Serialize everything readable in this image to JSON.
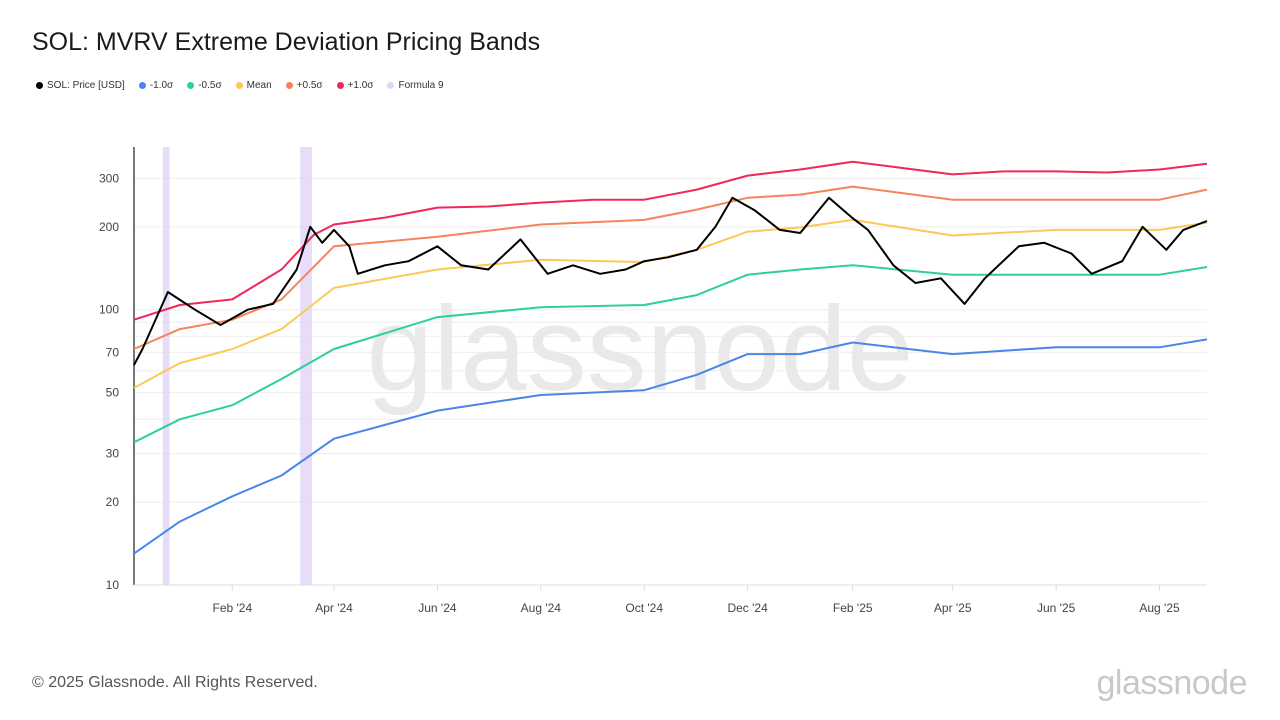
{
  "title": "SOL: MVRV Extreme Deviation Pricing Bands",
  "footer": "© 2025 Glassnode. All Rights Reserved.",
  "brand": "glassnode",
  "watermark": "glassnode",
  "chart_data": {
    "type": "line",
    "title": "SOL: MVRV Extreme Deviation Pricing Bands",
    "yscale": "log",
    "ylim": [
      10,
      390
    ],
    "xlim": [
      "2023-12-05",
      "2025-08-29"
    ],
    "yticks": [
      10,
      20,
      30,
      50,
      70,
      100,
      200,
      300
    ],
    "xticks": [
      {
        "date": "2024-02-01",
        "label": "Feb '24"
      },
      {
        "date": "2024-04-01",
        "label": "Apr '24"
      },
      {
        "date": "2024-06-01",
        "label": "Jun '24"
      },
      {
        "date": "2024-08-01",
        "label": "Aug '24"
      },
      {
        "date": "2024-10-01",
        "label": "Oct '24"
      },
      {
        "date": "2024-12-01",
        "label": "Dec '24"
      },
      {
        "date": "2025-02-01",
        "label": "Feb '25"
      },
      {
        "date": "2025-04-01",
        "label": "Apr '25"
      },
      {
        "date": "2025-06-01",
        "label": "Jun '25"
      },
      {
        "date": "2025-08-01",
        "label": "Aug '25"
      }
    ],
    "legend": [
      "SOL: Price [USD]",
      "-1.0σ",
      "-0.5σ",
      "Mean",
      "+0.5σ",
      "+1.0σ",
      "Formula 9"
    ],
    "legend_position": "top-left",
    "shaded": {
      "name": "Formula 9",
      "color": "#e2d4f7",
      "ranges": [
        [
          "2023-12-22",
          "2023-12-26"
        ],
        [
          "2024-03-12",
          "2024-03-19"
        ]
      ]
    },
    "series": [
      {
        "name": "+1.0σ",
        "color": "#f0285a",
        "points": [
          [
            "2023-12-05",
            92
          ],
          [
            "2024-01-01",
            104
          ],
          [
            "2024-02-01",
            109
          ],
          [
            "2024-03-01",
            140
          ],
          [
            "2024-03-20",
            187
          ],
          [
            "2024-04-01",
            204
          ],
          [
            "2024-05-01",
            216
          ],
          [
            "2024-06-01",
            235
          ],
          [
            "2024-07-01",
            237
          ],
          [
            "2024-08-01",
            245
          ],
          [
            "2024-09-01",
            251
          ],
          [
            "2024-10-01",
            251
          ],
          [
            "2024-11-01",
            273
          ],
          [
            "2024-12-01",
            307
          ],
          [
            "2025-01-01",
            323
          ],
          [
            "2025-02-01",
            345
          ],
          [
            "2025-03-01",
            328
          ],
          [
            "2025-04-01",
            310
          ],
          [
            "2025-05-01",
            318
          ],
          [
            "2025-06-01",
            318
          ],
          [
            "2025-07-01",
            315
          ],
          [
            "2025-08-01",
            323
          ],
          [
            "2025-08-29",
            339
          ]
        ]
      },
      {
        "name": "+0.5σ",
        "color": "#f5845a",
        "points": [
          [
            "2023-12-05",
            72
          ],
          [
            "2024-01-01",
            85
          ],
          [
            "2024-02-01",
            92
          ],
          [
            "2024-03-01",
            109
          ],
          [
            "2024-04-01",
            170
          ],
          [
            "2024-06-01",
            184
          ],
          [
            "2024-08-01",
            204
          ],
          [
            "2024-10-01",
            212
          ],
          [
            "2024-11-01",
            231
          ],
          [
            "2024-12-01",
            255
          ],
          [
            "2025-01-01",
            262
          ],
          [
            "2025-02-01",
            280
          ],
          [
            "2025-04-01",
            251
          ],
          [
            "2025-06-01",
            251
          ],
          [
            "2025-08-01",
            251
          ],
          [
            "2025-08-29",
            273
          ]
        ]
      },
      {
        "name": "Mean",
        "color": "#fbc85a",
        "points": [
          [
            "2023-12-05",
            52
          ],
          [
            "2024-01-01",
            64
          ],
          [
            "2024-02-01",
            72
          ],
          [
            "2024-03-01",
            85
          ],
          [
            "2024-04-01",
            120
          ],
          [
            "2024-06-01",
            140
          ],
          [
            "2024-08-01",
            152
          ],
          [
            "2024-10-01",
            149
          ],
          [
            "2024-11-01",
            165
          ],
          [
            "2024-12-01",
            192
          ],
          [
            "2025-01-01",
            199
          ],
          [
            "2025-02-01",
            212
          ],
          [
            "2025-04-01",
            186
          ],
          [
            "2025-06-01",
            195
          ],
          [
            "2025-08-01",
            195
          ],
          [
            "2025-08-29",
            207
          ]
        ]
      },
      {
        "name": "-0.5σ",
        "color": "#2ecf98",
        "points": [
          [
            "2023-12-05",
            33
          ],
          [
            "2024-01-01",
            40
          ],
          [
            "2024-02-01",
            45
          ],
          [
            "2024-03-01",
            56
          ],
          [
            "2024-04-01",
            72
          ],
          [
            "2024-06-01",
            94
          ],
          [
            "2024-08-01",
            102
          ],
          [
            "2024-10-01",
            104
          ],
          [
            "2024-11-01",
            113
          ],
          [
            "2024-12-01",
            134
          ],
          [
            "2025-01-01",
            140
          ],
          [
            "2025-02-01",
            145
          ],
          [
            "2025-04-01",
            134
          ],
          [
            "2025-06-01",
            134
          ],
          [
            "2025-08-01",
            134
          ],
          [
            "2025-08-29",
            143
          ]
        ]
      },
      {
        "name": "-1.0σ",
        "color": "#4a86e8",
        "points": [
          [
            "2023-12-05",
            13
          ],
          [
            "2024-01-01",
            17
          ],
          [
            "2024-02-01",
            21
          ],
          [
            "2024-03-01",
            25
          ],
          [
            "2024-04-01",
            34
          ],
          [
            "2024-06-01",
            43
          ],
          [
            "2024-08-01",
            49
          ],
          [
            "2024-10-01",
            51
          ],
          [
            "2024-11-01",
            58
          ],
          [
            "2024-12-01",
            69
          ],
          [
            "2025-01-01",
            69
          ],
          [
            "2025-02-01",
            76
          ],
          [
            "2025-04-01",
            69
          ],
          [
            "2025-06-01",
            73
          ],
          [
            "2025-08-01",
            73
          ],
          [
            "2025-08-29",
            78
          ]
        ]
      },
      {
        "name": "SOL: Price [USD]",
        "color": "#000000",
        "points": [
          [
            "2023-12-05",
            63
          ],
          [
            "2023-12-10",
            72
          ],
          [
            "2023-12-25",
            116
          ],
          [
            "2024-01-10",
            100
          ],
          [
            "2024-01-25",
            88
          ],
          [
            "2024-02-10",
            100
          ],
          [
            "2024-02-25",
            105
          ],
          [
            "2024-03-10",
            140
          ],
          [
            "2024-03-18",
            200
          ],
          [
            "2024-03-25",
            175
          ],
          [
            "2024-04-01",
            195
          ],
          [
            "2024-04-10",
            170
          ],
          [
            "2024-04-15",
            135
          ],
          [
            "2024-05-01",
            145
          ],
          [
            "2024-05-15",
            150
          ],
          [
            "2024-06-01",
            170
          ],
          [
            "2024-06-15",
            145
          ],
          [
            "2024-07-01",
            140
          ],
          [
            "2024-07-20",
            180
          ],
          [
            "2024-08-05",
            135
          ],
          [
            "2024-08-20",
            145
          ],
          [
            "2024-09-05",
            135
          ],
          [
            "2024-09-20",
            140
          ],
          [
            "2024-10-01",
            150
          ],
          [
            "2024-10-15",
            155
          ],
          [
            "2024-11-01",
            165
          ],
          [
            "2024-11-12",
            200
          ],
          [
            "2024-11-22",
            255
          ],
          [
            "2024-12-05",
            230
          ],
          [
            "2024-12-20",
            195
          ],
          [
            "2025-01-01",
            190
          ],
          [
            "2025-01-18",
            255
          ],
          [
            "2025-02-01",
            215
          ],
          [
            "2025-02-10",
            195
          ],
          [
            "2025-02-25",
            145
          ],
          [
            "2025-03-10",
            125
          ],
          [
            "2025-03-25",
            130
          ],
          [
            "2025-04-08",
            105
          ],
          [
            "2025-04-20",
            130
          ],
          [
            "2025-05-10",
            170
          ],
          [
            "2025-05-25",
            175
          ],
          [
            "2025-06-10",
            160
          ],
          [
            "2025-06-22",
            135
          ],
          [
            "2025-07-10",
            150
          ],
          [
            "2025-07-22",
            200
          ],
          [
            "2025-08-05",
            165
          ],
          [
            "2025-08-15",
            195
          ],
          [
            "2025-08-29",
            210
          ]
        ]
      }
    ]
  }
}
